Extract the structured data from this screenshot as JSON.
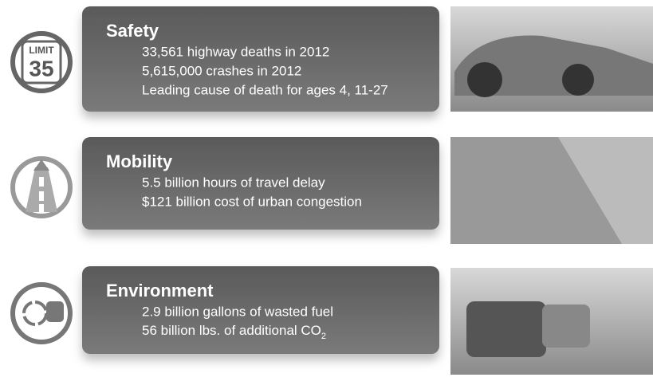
{
  "sections": [
    {
      "icon": {
        "top": "LIMIT",
        "number": "35"
      },
      "title": "Safety",
      "lines": [
        "33,561 highway deaths in 2012",
        "5,615,000 crashes in 2012",
        "Leading cause of death for ages 4, 11-27"
      ]
    },
    {
      "title": "Mobility",
      "lines": [
        "5.5 billion hours of travel delay",
        "$121 billion cost of urban congestion"
      ]
    },
    {
      "title": "Environment",
      "lines": [
        "2.9 billion gallons of wasted fuel",
        {
          "text": "56 billion lbs. of additional CO",
          "sub": "2"
        }
      ]
    }
  ]
}
